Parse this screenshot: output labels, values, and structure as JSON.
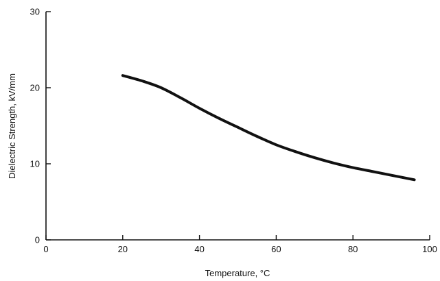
{
  "chart_data": {
    "type": "line",
    "title": "",
    "xlabel": "Temperature, °C",
    "ylabel": "Dielectric Strength, kV/mm",
    "xlim": [
      0,
      100
    ],
    "ylim": [
      0,
      30
    ],
    "x_ticks": [
      0,
      20,
      40,
      60,
      80,
      100
    ],
    "y_ticks": [
      0,
      10,
      20,
      30
    ],
    "grid": false,
    "legend": "none",
    "series": [
      {
        "x": [
          20,
          25,
          30,
          35,
          40,
          45,
          50,
          55,
          60,
          65,
          70,
          75,
          80,
          85,
          90,
          96
        ],
        "y": [
          21.6,
          20.9,
          20.0,
          18.7,
          17.3,
          16.0,
          14.8,
          13.6,
          12.5,
          11.6,
          10.8,
          10.1,
          9.5,
          9.0,
          8.5,
          7.9
        ]
      }
    ],
    "colors": {
      "line": "#111111",
      "axis": "#111111"
    }
  }
}
